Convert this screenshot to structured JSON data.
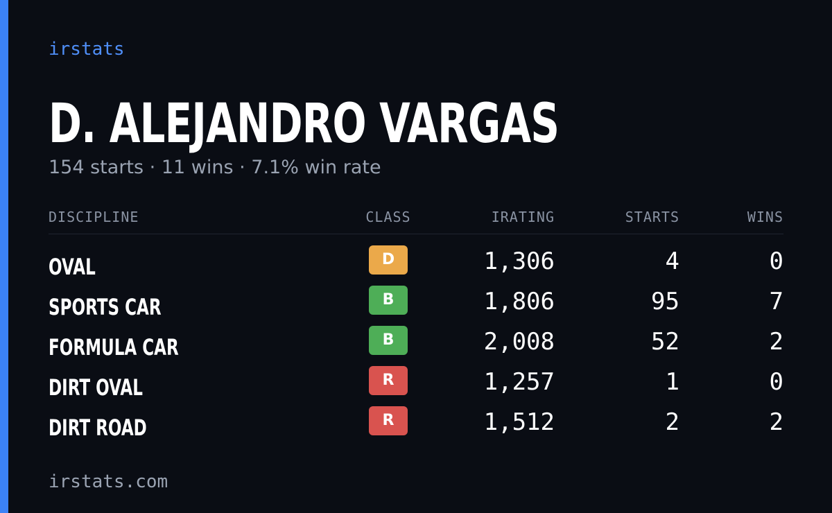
{
  "header": {
    "brand": "irstats"
  },
  "driver": {
    "name": "D. ALEJANDRO VARGAS",
    "summary": "154 starts · 11 wins · 7.1% win rate"
  },
  "table": {
    "columns": [
      "DISCIPLINE",
      "CLASS",
      "IRATING",
      "STARTS",
      "WINS"
    ],
    "rows": [
      {
        "discipline": "OVAL",
        "class": "D",
        "class_color": "#eba94a",
        "irating": "1,306",
        "starts": "4",
        "wins": "0"
      },
      {
        "discipline": "SPORTS CAR",
        "class": "B",
        "class_color": "#4eae57",
        "irating": "1,806",
        "starts": "95",
        "wins": "7"
      },
      {
        "discipline": "FORMULA CAR",
        "class": "B",
        "class_color": "#4eae57",
        "irating": "2,008",
        "starts": "52",
        "wins": "2"
      },
      {
        "discipline": "DIRT OVAL",
        "class": "R",
        "class_color": "#d9534f",
        "irating": "1,257",
        "starts": "1",
        "wins": "0"
      },
      {
        "discipline": "DIRT ROAD",
        "class": "R",
        "class_color": "#d9534f",
        "irating": "1,512",
        "starts": "2",
        "wins": "2"
      }
    ]
  },
  "footer": {
    "site": "irstats.com"
  }
}
